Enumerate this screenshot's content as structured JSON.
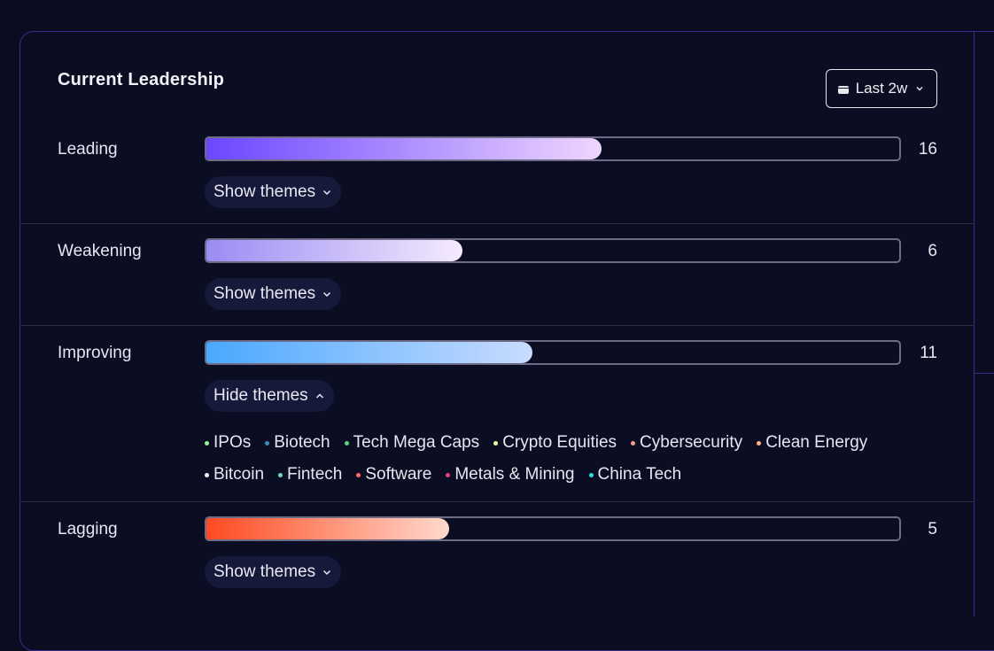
{
  "header": {
    "title": "Current Leadership",
    "range_label": "Last 2w"
  },
  "colors": {
    "leading": [
      "#6b46ff",
      "#efd6ff"
    ],
    "weakening": [
      "#9a8cf2",
      "#f5eaff"
    ],
    "improving": [
      "#4aa8ff",
      "#c9dcff"
    ],
    "lagging": [
      "#ff4a22",
      "#ffd9cc"
    ]
  },
  "rows": [
    {
      "label": "Leading",
      "count": "16",
      "fill_fraction": 0.57,
      "toggle": "Show themes"
    },
    {
      "label": "Weakening",
      "count": "6",
      "fill_fraction": 0.37,
      "toggle": "Show themes"
    },
    {
      "label": "Improving",
      "count": "11",
      "fill_fraction": 0.47,
      "toggle": "Hide themes",
      "themes_line1": [
        {
          "name": "IPOs",
          "color": "#9ef09e"
        },
        {
          "name": "Biotech",
          "color": "#3a8fb7"
        },
        {
          "name": "Tech Mega Caps",
          "color": "#5fd17a"
        },
        {
          "name": "Crypto Equities",
          "color": "#e6ffa8"
        },
        {
          "name": "Cybersecurity",
          "color": "#ff9a8a"
        },
        {
          "name": "Clean Energy",
          "color": "#ffb38a"
        }
      ],
      "themes_line2": [
        {
          "name": "Bitcoin",
          "color": "#f2f2f2"
        },
        {
          "name": "Fintech",
          "color": "#6fdcb8"
        },
        {
          "name": "Software",
          "color": "#ff6b6b"
        },
        {
          "name": "Metals & Mining",
          "color": "#e0457a"
        },
        {
          "name": "China Tech",
          "color": "#2ee0e0"
        }
      ]
    },
    {
      "label": "Lagging",
      "count": "5",
      "fill_fraction": 0.35,
      "toggle": "Show themes"
    }
  ]
}
